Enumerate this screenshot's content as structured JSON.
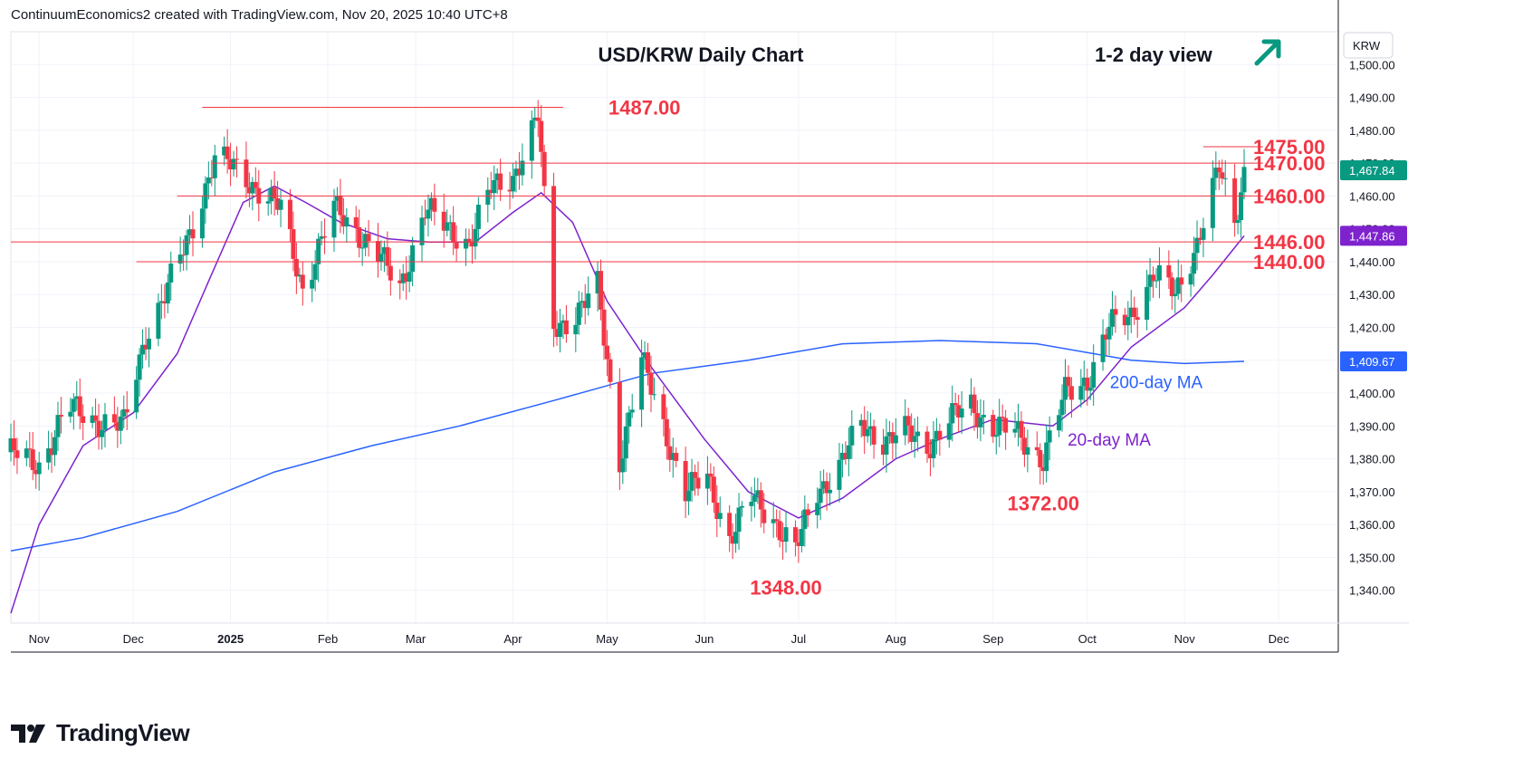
{
  "header": {
    "text": "ContinuumEconomics2 created with TradingView.com, Nov 20, 2025 10:40 UTC+8"
  },
  "footer": {
    "brand": "TradingView"
  },
  "colors": {
    "up": "#089981",
    "down": "#f23645",
    "level": "#f23645",
    "ma20": "#7e22ce",
    "ma200": "#2962ff",
    "annotation": "#f23645",
    "arrow": "#089981",
    "grid": "#f0f3fa"
  },
  "icons": {
    "trend": "arrow-up-right-icon",
    "brand": "tradingview-logo-icon"
  },
  "chart_data": {
    "type": "candlestick",
    "title": "USD/KRW Daily Chart",
    "view_label": "1-2 day view",
    "view_direction": "up",
    "currency_label": "KRW",
    "ylim": [
      1330,
      1510
    ],
    "y_ticks": [
      {
        "value": 1340,
        "label": "1,340.00"
      },
      {
        "value": 1350,
        "label": "1,350.00"
      },
      {
        "value": 1360,
        "label": "1,360.00"
      },
      {
        "value": 1370,
        "label": "1,370.00"
      },
      {
        "value": 1380,
        "label": "1,380.00"
      },
      {
        "value": 1390,
        "label": "1,390.00"
      },
      {
        "value": 1400,
        "label": "1,400.00"
      },
      {
        "value": 1410,
        "label": "1,410.00"
      },
      {
        "value": 1420,
        "label": "1,420.00"
      },
      {
        "value": 1430,
        "label": "1,430.00"
      },
      {
        "value": 1440,
        "label": "1,440.00"
      },
      {
        "value": 1450,
        "label": "1,450.00"
      },
      {
        "value": 1460,
        "label": "1,460.00"
      },
      {
        "value": 1470,
        "label": "1,470.00"
      },
      {
        "value": 1480,
        "label": "1,480.00"
      },
      {
        "value": 1490,
        "label": "1,490.00"
      },
      {
        "value": 1500,
        "label": "1,500.00"
      }
    ],
    "x_ticks": [
      {
        "date": "2024-11-01",
        "label": "Nov"
      },
      {
        "date": "2024-12-01",
        "label": "Dec"
      },
      {
        "date": "2025-01-01",
        "label": "2025"
      },
      {
        "date": "2025-02-01",
        "label": "Feb"
      },
      {
        "date": "2025-03-01",
        "label": "Mar"
      },
      {
        "date": "2025-04-01",
        "label": "Apr"
      },
      {
        "date": "2025-05-01",
        "label": "May"
      },
      {
        "date": "2025-06-01",
        "label": "Jun"
      },
      {
        "date": "2025-07-01",
        "label": "Jul"
      },
      {
        "date": "2025-08-01",
        "label": "Aug"
      },
      {
        "date": "2025-09-01",
        "label": "Sep"
      },
      {
        "date": "2025-10-01",
        "label": "Oct"
      },
      {
        "date": "2025-11-01",
        "label": "Nov"
      },
      {
        "date": "2025-12-01",
        "label": "Dec"
      }
    ],
    "x_range": [
      "2024-10-23",
      "2025-12-20"
    ],
    "series": [
      {
        "name": "USD/KRW",
        "values": [
          {
            "date": "2024-10-23",
            "v": 1382
          },
          {
            "date": "2024-11-01",
            "v": 1378
          },
          {
            "date": "2024-11-10",
            "v": 1396
          },
          {
            "date": "2024-11-18",
            "v": 1392
          },
          {
            "date": "2024-11-28",
            "v": 1390
          },
          {
            "date": "2024-12-05",
            "v": 1418
          },
          {
            "date": "2024-12-12",
            "v": 1432
          },
          {
            "date": "2024-12-19",
            "v": 1448
          },
          {
            "date": "2024-12-27",
            "v": 1472
          },
          {
            "date": "2025-01-03",
            "v": 1468
          },
          {
            "date": "2025-01-10",
            "v": 1462
          },
          {
            "date": "2025-01-17",
            "v": 1456
          },
          {
            "date": "2025-01-24",
            "v": 1432
          },
          {
            "date": "2025-02-03",
            "v": 1456
          },
          {
            "date": "2025-02-10",
            "v": 1450
          },
          {
            "date": "2025-02-17",
            "v": 1442
          },
          {
            "date": "2025-02-24",
            "v": 1432
          },
          {
            "date": "2025-03-04",
            "v": 1456
          },
          {
            "date": "2025-03-11",
            "v": 1450
          },
          {
            "date": "2025-03-18",
            "v": 1446
          },
          {
            "date": "2025-03-25",
            "v": 1462
          },
          {
            "date": "2025-04-01",
            "v": 1466
          },
          {
            "date": "2025-04-09",
            "v": 1484
          },
          {
            "date": "2025-04-14",
            "v": 1420
          },
          {
            "date": "2025-04-21",
            "v": 1424
          },
          {
            "date": "2025-04-28",
            "v": 1432
          },
          {
            "date": "2025-05-05",
            "v": 1380
          },
          {
            "date": "2025-05-12",
            "v": 1410
          },
          {
            "date": "2025-05-19",
            "v": 1390
          },
          {
            "date": "2025-05-26",
            "v": 1370
          },
          {
            "date": "2025-06-02",
            "v": 1374
          },
          {
            "date": "2025-06-09",
            "v": 1356
          },
          {
            "date": "2025-06-16",
            "v": 1368
          },
          {
            "date": "2025-06-23",
            "v": 1362
          },
          {
            "date": "2025-06-30",
            "v": 1352
          },
          {
            "date": "2025-07-07",
            "v": 1370
          },
          {
            "date": "2025-07-14",
            "v": 1378
          },
          {
            "date": "2025-07-21",
            "v": 1390
          },
          {
            "date": "2025-07-28",
            "v": 1386
          },
          {
            "date": "2025-08-04",
            "v": 1388
          },
          {
            "date": "2025-08-11",
            "v": 1384
          },
          {
            "date": "2025-08-18",
            "v": 1392
          },
          {
            "date": "2025-08-25",
            "v": 1396
          },
          {
            "date": "2025-09-01",
            "v": 1390
          },
          {
            "date": "2025-09-08",
            "v": 1388
          },
          {
            "date": "2025-09-17",
            "v": 1380
          },
          {
            "date": "2025-09-24",
            "v": 1400
          },
          {
            "date": "2025-10-01",
            "v": 1404
          },
          {
            "date": "2025-10-08",
            "v": 1420
          },
          {
            "date": "2025-10-15",
            "v": 1424
          },
          {
            "date": "2025-10-22",
            "v": 1436
          },
          {
            "date": "2025-10-29",
            "v": 1430
          },
          {
            "date": "2025-11-05",
            "v": 1446
          },
          {
            "date": "2025-11-12",
            "v": 1468
          },
          {
            "date": "2025-11-17",
            "v": 1452
          },
          {
            "date": "2025-11-20",
            "v": 1467.84
          }
        ]
      },
      {
        "name": "20-day MA",
        "values": [
          {
            "date": "2024-10-23",
            "v": 1333
          },
          {
            "date": "2024-11-01",
            "v": 1360
          },
          {
            "date": "2024-11-15",
            "v": 1384
          },
          {
            "date": "2024-12-01",
            "v": 1394
          },
          {
            "date": "2024-12-15",
            "v": 1412
          },
          {
            "date": "2024-12-25",
            "v": 1434
          },
          {
            "date": "2025-01-05",
            "v": 1458
          },
          {
            "date": "2025-01-15",
            "v": 1463
          },
          {
            "date": "2025-01-25",
            "v": 1458
          },
          {
            "date": "2025-02-05",
            "v": 1452
          },
          {
            "date": "2025-02-20",
            "v": 1447
          },
          {
            "date": "2025-03-05",
            "v": 1446
          },
          {
            "date": "2025-03-20",
            "v": 1446
          },
          {
            "date": "2025-04-01",
            "v": 1455
          },
          {
            "date": "2025-04-10",
            "v": 1461
          },
          {
            "date": "2025-04-20",
            "v": 1452
          },
          {
            "date": "2025-05-01",
            "v": 1428
          },
          {
            "date": "2025-05-15",
            "v": 1408
          },
          {
            "date": "2025-06-01",
            "v": 1386
          },
          {
            "date": "2025-06-15",
            "v": 1370
          },
          {
            "date": "2025-07-01",
            "v": 1362
          },
          {
            "date": "2025-07-15",
            "v": 1368
          },
          {
            "date": "2025-08-01",
            "v": 1380
          },
          {
            "date": "2025-08-15",
            "v": 1386
          },
          {
            "date": "2025-09-01",
            "v": 1392
          },
          {
            "date": "2025-09-20",
            "v": 1390
          },
          {
            "date": "2025-10-01",
            "v": 1398
          },
          {
            "date": "2025-10-15",
            "v": 1414
          },
          {
            "date": "2025-11-01",
            "v": 1426
          },
          {
            "date": "2025-11-10",
            "v": 1436
          },
          {
            "date": "2025-11-20",
            "v": 1447.86
          }
        ]
      },
      {
        "name": "200-day MA",
        "values": [
          {
            "date": "2024-10-23",
            "v": 1352
          },
          {
            "date": "2024-11-15",
            "v": 1356
          },
          {
            "date": "2024-12-15",
            "v": 1364
          },
          {
            "date": "2025-01-15",
            "v": 1376
          },
          {
            "date": "2025-02-15",
            "v": 1384
          },
          {
            "date": "2025-03-15",
            "v": 1390
          },
          {
            "date": "2025-04-15",
            "v": 1398
          },
          {
            "date": "2025-05-15",
            "v": 1406
          },
          {
            "date": "2025-06-15",
            "v": 1410
          },
          {
            "date": "2025-07-15",
            "v": 1415
          },
          {
            "date": "2025-08-15",
            "v": 1416
          },
          {
            "date": "2025-09-15",
            "v": 1415
          },
          {
            "date": "2025-10-15",
            "v": 1410
          },
          {
            "date": "2025-11-01",
            "v": 1409
          },
          {
            "date": "2025-11-20",
            "v": 1409.67
          }
        ]
      }
    ],
    "levels": [
      {
        "value": 1487,
        "label": "1487.00",
        "from": "2024-12-23",
        "to": "2025-04-17"
      },
      {
        "value": 1475,
        "label": "1475.00",
        "from": "2025-11-07",
        "to": "2025-11-26"
      },
      {
        "value": 1470,
        "label": "1470.00",
        "from": "2024-12-26",
        "to": "2025-11-26"
      },
      {
        "value": 1460,
        "label": "1460.00",
        "from": "2024-12-15",
        "to": "2025-11-26"
      },
      {
        "value": 1446,
        "label": "1446.00",
        "from": "2024-10-23",
        "to": "2025-11-26"
      },
      {
        "value": 1440,
        "label": "1440.00",
        "from": "2024-12-02",
        "to": "2025-11-26"
      }
    ],
    "annotations": [
      {
        "text": "1348.00",
        "date": "2025-06-27",
        "value": 1348
      },
      {
        "text": "1372.00",
        "date": "2025-09-17",
        "value": 1372
      },
      {
        "text": "200-day MA",
        "date": "2025-10-23",
        "value": 1407
      },
      {
        "text": "20-day MA",
        "date": "2025-10-08",
        "value": 1389
      }
    ],
    "price_tags": [
      {
        "label": "1,467.84",
        "value": 1467.84,
        "color": "#089981"
      },
      {
        "label": "1,447.86",
        "value": 1447.86,
        "color": "#7e22ce"
      },
      {
        "label": "1,409.67",
        "value": 1409.67,
        "color": "#2962ff"
      }
    ]
  }
}
